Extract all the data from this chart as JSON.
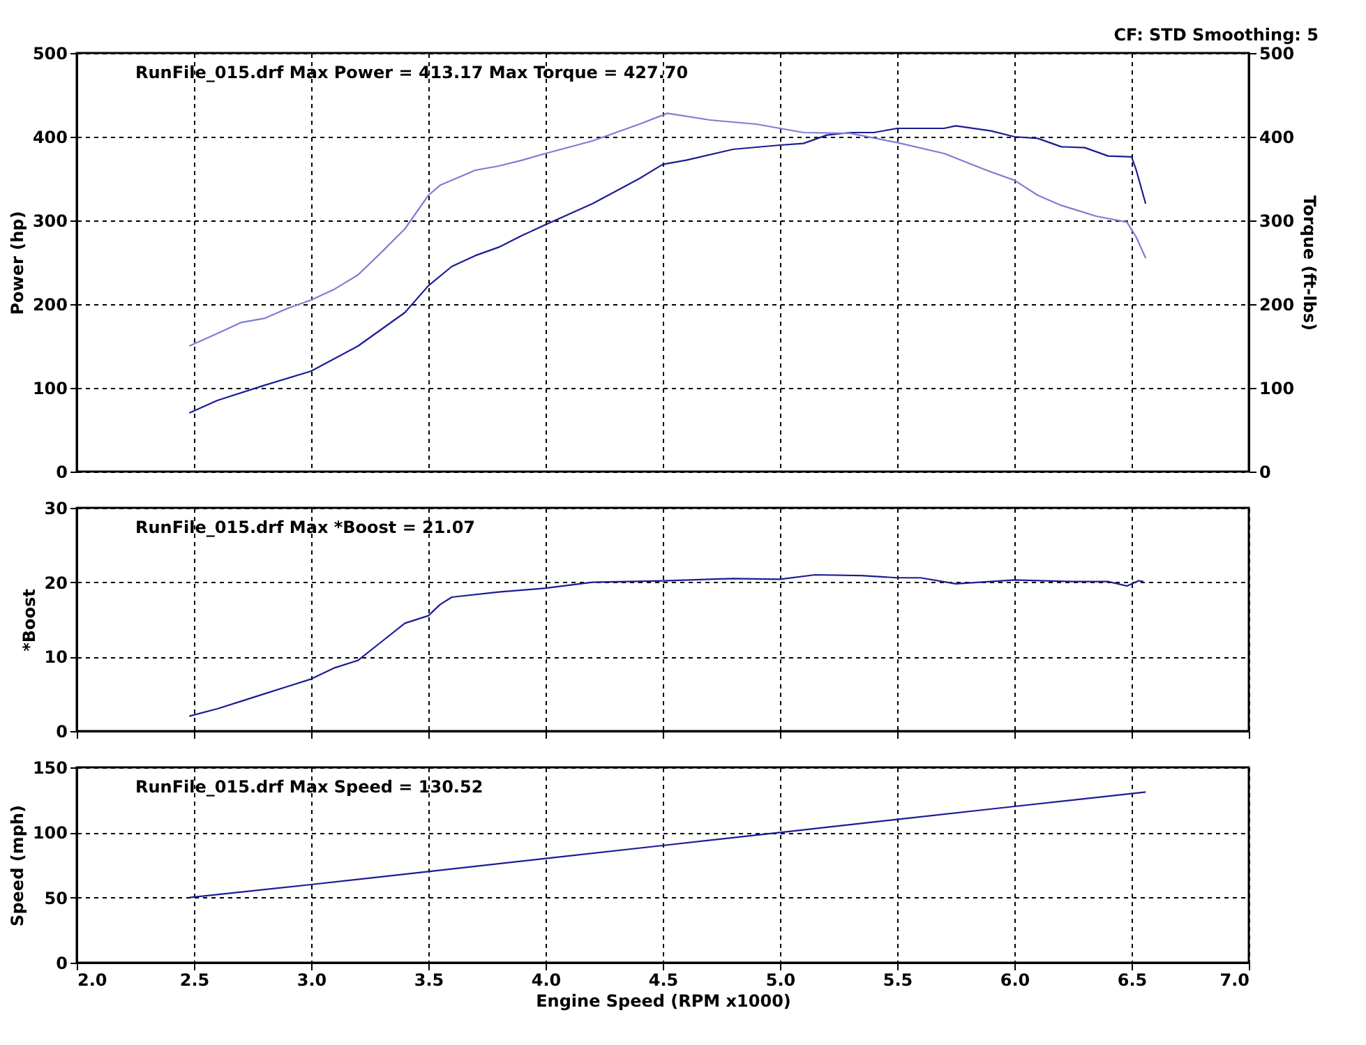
{
  "chart_data": [
    {
      "type": "line",
      "ylabel": "Power (hp)",
      "y2label": "Torque (ft-lbs)",
      "annotations": [
        "RunFile_015.drf Max Power = 413.17     Max Torque = 427.70",
        "CF: STD  Smoothing: 5"
      ],
      "x": [
        2.48,
        2.6,
        2.8,
        3.0,
        3.2,
        3.4,
        3.5,
        3.6,
        3.7,
        3.8,
        3.9,
        4.0,
        4.2,
        4.4,
        4.5,
        4.6,
        4.8,
        5.0,
        5.1,
        5.2,
        5.3,
        5.4,
        5.5,
        5.6,
        5.7,
        5.75,
        5.9,
        6.0,
        6.1,
        6.2,
        6.3,
        6.4,
        6.5,
        6.52,
        6.56
      ],
      "series": [
        {
          "color": "#1c1c94",
          "axis": "y",
          "values": [
            70,
            85,
            103,
            120,
            150,
            190,
            222,
            245,
            258,
            268,
            282,
            295,
            320,
            350,
            367,
            372,
            385,
            390,
            392,
            402,
            405,
            405,
            410,
            410,
            410,
            413,
            407,
            400,
            398,
            388,
            387,
            377,
            376,
            360,
            320
          ]
        },
        {
          "color": "#7d7dd6",
          "axis": "y2",
          "x": [
            2.48,
            2.6,
            2.7,
            2.8,
            2.9,
            3.0,
            3.1,
            3.2,
            3.3,
            3.4,
            3.5,
            3.55,
            3.7,
            3.8,
            3.9,
            4.0,
            4.2,
            4.4,
            4.52,
            4.7,
            4.9,
            5.1,
            5.3,
            5.5,
            5.7,
            5.9,
            6.0,
            6.1,
            6.2,
            6.35,
            6.48,
            6.52,
            6.56
          ],
          "values": [
            150,
            165,
            178,
            183,
            195,
            205,
            218,
            235,
            262,
            290,
            330,
            342,
            360,
            365,
            372,
            380,
            395,
            415,
            428,
            420,
            415,
            405,
            404,
            393,
            380,
            358,
            348,
            330,
            318,
            305,
            298,
            280,
            255
          ]
        }
      ],
      "xlim": [
        2.0,
        7.0
      ],
      "ylim": [
        0,
        500
      ],
      "yticks": [
        0,
        100,
        200,
        300,
        400,
        500
      ],
      "y2lim": [
        0,
        500
      ],
      "y2ticks": [
        0,
        100,
        200,
        300,
        400,
        500
      ],
      "grid": true,
      "tick_labels": "y",
      "line_style": "solid",
      "marker": "none"
    },
    {
      "type": "line",
      "ylabel": "*Boost",
      "annotations": [
        "RunFile_015.drf Max *Boost = 21.07"
      ],
      "x": [
        2.48,
        2.6,
        2.7,
        2.8,
        2.9,
        3.0,
        3.1,
        3.2,
        3.3,
        3.4,
        3.5,
        3.55,
        3.6,
        3.8,
        4.0,
        4.2,
        4.5,
        4.8,
        5.0,
        5.15,
        5.35,
        5.5,
        5.6,
        5.75,
        6.0,
        6.25,
        6.4,
        6.48,
        6.53,
        6.55
      ],
      "series": [
        {
          "color": "#1c1c94",
          "values": [
            2,
            3,
            4,
            5,
            6,
            7,
            8.5,
            9.5,
            12,
            14.5,
            15.5,
            17,
            18,
            18.7,
            19.2,
            20,
            20.2,
            20.5,
            20.4,
            21.0,
            20.9,
            20.6,
            20.6,
            19.8,
            20.3,
            20.1,
            20.1,
            19.5,
            20.2,
            20.1
          ]
        }
      ],
      "xlim": [
        2.0,
        7.0
      ],
      "ylim": [
        0,
        30
      ],
      "yticks": [
        0,
        10,
        20,
        30
      ],
      "grid": true,
      "tick_labels": "y",
      "line_style": "solid",
      "marker": "none"
    },
    {
      "type": "line",
      "xlabel": "Engine Speed (RPM x1000)",
      "ylabel": "Speed (mph)",
      "annotations": [
        "RunFile_015.drf Max Speed = 130.52"
      ],
      "x": [
        2.48,
        3.0,
        3.5,
        4.0,
        4.5,
        5.0,
        5.5,
        6.0,
        6.56
      ],
      "series": [
        {
          "color": "#1c1c94",
          "values": [
            50,
            60,
            70,
            80,
            90,
            100,
            110,
            120,
            131
          ]
        }
      ],
      "xlim": [
        2.0,
        7.0
      ],
      "xticks": [
        {
          "value": 2.0,
          "label": "2.0"
        },
        2.5,
        {
          "value": 3.0,
          "label": "3.0"
        },
        3.5,
        {
          "value": 4.0,
          "label": "4.0"
        },
        4.5,
        {
          "value": 5.0,
          "label": "5.0"
        },
        5.5,
        {
          "value": 6.0,
          "label": "6.0"
        },
        6.5,
        {
          "value": 7.0,
          "label": "7.0"
        }
      ],
      "ylim": [
        0,
        150
      ],
      "yticks": [
        0,
        50,
        100,
        150
      ],
      "grid": true,
      "line_style": "solid",
      "marker": "none"
    }
  ]
}
